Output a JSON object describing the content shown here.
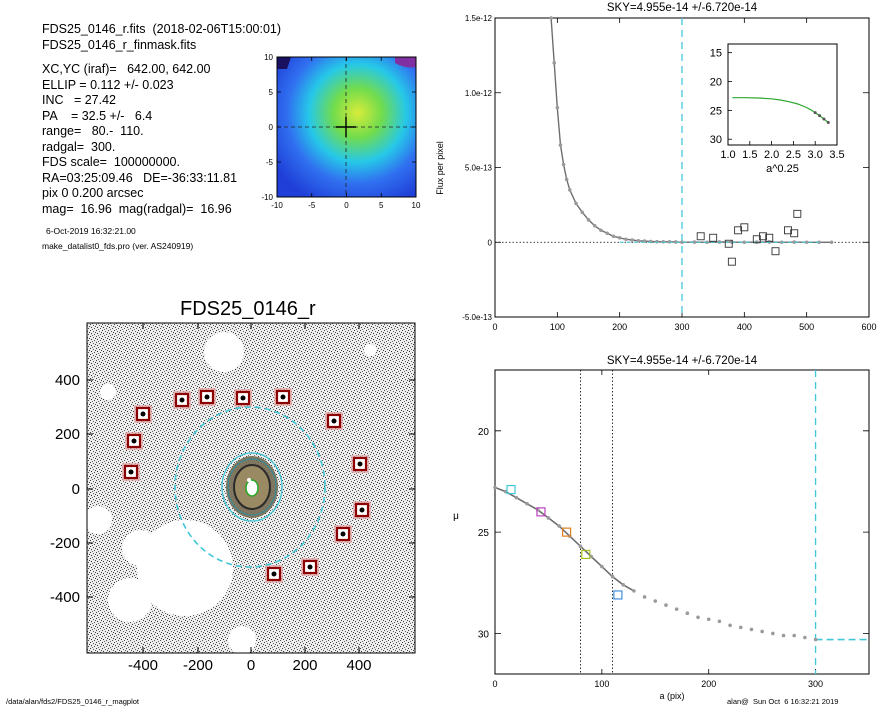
{
  "header": {
    "file_line": "FDS25_0146_r.fits  (2018-02-06T15:00:01)",
    "mask_line": "FDS25_0146_r_finmask.fits",
    "params": [
      "XC,YC (iraf)=   642.00, 642.00",
      "ELLIP = 0.112 +/- 0.023",
      "INC   = 27.42",
      "PA    = 32.5 +/-   6.4",
      "range=   80.-  110.",
      "radgal=  300.",
      "FDS scale=  100000000.",
      "RA=03:25:09.46   DE=-36:33:11.81",
      "pix 0 0.200 arcsec",
      "mag=  16.96  mag(radgal)=  16.96"
    ],
    "date_line": "6-Oct-2019 16:32:21.00",
    "program_line": "make_datalist0_fds.pro (ver. AS240919)"
  },
  "footer": {
    "left_path": "/data/alan/fds2/FDS25_0146_r_magplot",
    "right_stamp": "alan@  Sun Oct  6 16:32:21 2019"
  },
  "image_panel": {
    "title": "FDS25_0146_r",
    "x_ticks": [
      "-400",
      "-200",
      "0",
      "200",
      "400"
    ],
    "y_ticks": [
      "400",
      "200",
      "0",
      "-200",
      "-400"
    ]
  },
  "thumb_panel": {
    "x_ticks": [
      "-10",
      "-5",
      "0",
      "5",
      "10"
    ],
    "y_ticks": [
      "10",
      "5",
      "0",
      "-5",
      "-10"
    ]
  },
  "colors": {
    "mask_box": "#8b0000",
    "ellipse": "#40c8d8",
    "profile_line": "#6e6e6e",
    "profile_points": "#9a9a9a",
    "inset_line": "#2ea82e"
  },
  "chart_data": [
    {
      "type": "scatter",
      "title": "SKY=4.955e-14 +/-6.720e-14",
      "xlabel": "",
      "ylabel": "Flux per pixel",
      "xlim": [
        0,
        600
      ],
      "ylim": [
        -5e-13,
        1.5e-12
      ],
      "x_ticks": [
        "0",
        "100",
        "200",
        "300",
        "400",
        "500",
        "600"
      ],
      "y_ticks": [
        "-5.0e-13",
        "0",
        "5.0e-13",
        "1.0e-12",
        "1.5e-12"
      ],
      "y_tick_values": [
        -5e-13,
        0,
        5e-13,
        1e-12,
        1.5e-12
      ],
      "vlines": [
        300
      ],
      "hline": 0,
      "series": [
        {
          "x": [
            90,
            95,
            100,
            105,
            110,
            115,
            120,
            130,
            140,
            150,
            160,
            170,
            180,
            190,
            200,
            210,
            220,
            230,
            240,
            250,
            260,
            270,
            280,
            290,
            300,
            320,
            340,
            360,
            380,
            400,
            420,
            440,
            460,
            480,
            500,
            520,
            540
          ],
          "values": [
            1.5e-12,
            1.2e-12,
            9e-13,
            6.5e-13,
            5.2e-13,
            4.2e-13,
            3.5e-13,
            2.6e-13,
            2e-13,
            1.5e-13,
            1.1e-13,
            8e-14,
            6e-14,
            4e-14,
            3e-14,
            2e-14,
            1.5e-14,
            1e-14,
            8e-15,
            5e-15,
            4e-15,
            3e-15,
            3e-15,
            2e-15,
            0,
            1e-15,
            0,
            2e-15,
            1e-15,
            0,
            1e-15,
            2e-15,
            0,
            1e-15,
            0,
            0,
            0
          ]
        },
        {
          "x": [
            330,
            350,
            375,
            380,
            390,
            400,
            420,
            430,
            440,
            450,
            470,
            480,
            485
          ],
          "values": [
            4e-14,
            3e-14,
            -1e-14,
            -1.3e-13,
            8e-14,
            1e-13,
            2e-14,
            4e-14,
            3e-14,
            -6e-14,
            8e-14,
            6e-14,
            1.9e-13
          ]
        }
      ],
      "inset": {
        "xlabel": "a^0.25",
        "xlim": [
          1.0,
          3.5
        ],
        "ylim": [
          31,
          13.5
        ],
        "x_ticks": [
          "1.0",
          "1.5",
          "2.0",
          "2.5",
          "3.0",
          "3.5"
        ],
        "y_ticks": [
          "15",
          "20",
          "25",
          "30"
        ],
        "y_tick_values": [
          15,
          20,
          25,
          30
        ],
        "x": [
          1.1,
          1.4,
          1.7,
          2.0,
          2.2,
          2.4,
          2.6,
          2.8,
          2.9,
          3.0,
          3.1,
          3.2,
          3.3
        ],
        "values": [
          22.8,
          22.8,
          22.85,
          23.0,
          23.2,
          23.5,
          23.9,
          24.5,
          24.9,
          25.4,
          25.9,
          26.5,
          27.1
        ]
      }
    },
    {
      "type": "scatter",
      "title": "SKY=4.955e-14 +/-6.720e-14",
      "xlabel": "a (pix)",
      "ylabel": "μ",
      "xlim": [
        0,
        350
      ],
      "ylim": [
        32,
        17
      ],
      "x_ticks": [
        "0",
        "100",
        "200",
        "300"
      ],
      "y_ticks": [
        "20",
        "25",
        "30"
      ],
      "y_tick_values": [
        20,
        25,
        30
      ],
      "vlines_dotted": [
        80,
        110
      ],
      "vline_dashed": 300,
      "sky_level": {
        "x": [
          300,
          350
        ],
        "value": 30.3
      },
      "series": [
        {
          "x": [
            0,
            10,
            20,
            30,
            40,
            50,
            60,
            70,
            80,
            90,
            100,
            110,
            120,
            130,
            140,
            150,
            160,
            170,
            180,
            190,
            200,
            210,
            220,
            230,
            240,
            250,
            260,
            270,
            280,
            290,
            300
          ],
          "values": [
            22.8,
            23.0,
            23.3,
            23.6,
            23.9,
            24.3,
            24.7,
            25.2,
            25.7,
            26.2,
            26.7,
            27.2,
            27.6,
            27.9,
            28.2,
            28.4,
            28.6,
            28.8,
            29.0,
            29.2,
            29.3,
            29.4,
            29.6,
            29.7,
            29.8,
            29.9,
            30.0,
            30.1,
            30.1,
            30.2,
            30.3
          ]
        }
      ],
      "markers": [
        {
          "x": 15,
          "value": 22.9,
          "color": "#40c8d8"
        },
        {
          "x": 43,
          "value": 24.0,
          "color": "#c040c0"
        },
        {
          "x": 67,
          "value": 25.0,
          "color": "#e08020"
        },
        {
          "x": 85,
          "value": 26.1,
          "color": "#a0c020"
        },
        {
          "x": 115,
          "value": 28.1,
          "color": "#4090e0"
        }
      ]
    }
  ]
}
